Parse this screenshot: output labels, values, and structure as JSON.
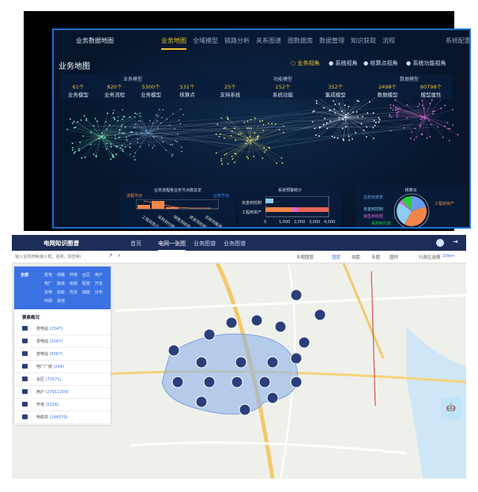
{
  "top_app": {
    "logo_text": "业务数据地图",
    "nav": [
      "业务地图",
      "全域模型",
      "链路分析",
      "关系图谱",
      "图数据库",
      "数据管理",
      "知识获取",
      "流程",
      "系统配置"
    ],
    "active_nav": 0,
    "page_title": "业务地图",
    "views": [
      "业务视角",
      "系统视角",
      "核算点视角",
      "系统功能视角"
    ],
    "active_view": 0,
    "groups": [
      {
        "title": "业务模型",
        "stats": [
          {
            "value": "61个",
            "label": "业务模型"
          },
          {
            "value": "820个",
            "label": "业务流程"
          },
          {
            "value": "5300个",
            "label": "业务模型"
          },
          {
            "value": "531个",
            "label": "核算点"
          }
        ]
      },
      {
        "title": "功能模型",
        "stats": [
          {
            "value": "25个",
            "label": "支持系统"
          },
          {
            "value": "152个",
            "label": "系统功能"
          },
          {
            "value": "352个",
            "label": "集成模型"
          }
        ]
      },
      {
        "title": "数据模型",
        "stats": [
          {
            "value": "2498个",
            "label": "数据模型"
          },
          {
            "value": "60798个",
            "label": "模型属性"
          }
        ]
      }
    ],
    "panel1": {
      "title": "业务流程各业务节点数总览",
      "legend": [
        "流程节点",
        "业务节点"
      ],
      "categories": [
        "工程到资产",
        "采购到付款",
        "销售到收款",
        "资金到控制",
        "总账到报表"
      ]
    },
    "panel2": {
      "title": "系统预警统计",
      "categories": [
        "资金到控制",
        "工程到资产"
      ],
      "ticks": [
        "0",
        "1,000",
        "2,000",
        "3,000",
        "4,000"
      ]
    },
    "panel3": {
      "title": "核算点",
      "labels": [
        "总账到报表",
        "工程到资产",
        "资金到控制",
        "销售到收款",
        "采购到付款"
      ],
      "colors": [
        "#6b9be8",
        "#f4854a",
        "#8ecbf5",
        "#d966d9",
        "#2ecc40"
      ]
    }
  },
  "bottom_app": {
    "title": "电网知识图谱",
    "nav": [
      "首页",
      "电网一张图",
      "业务图谱",
      "业务图谱"
    ],
    "active_nav": 1,
    "search_placeholder": "输入全局搜索(输入框，名称，拼音等)",
    "tools": [
      "专题图层",
      "图层",
      "测距",
      "专题",
      "图例",
      "行政区选择",
      "20km"
    ],
    "categories": [
      "全部",
      "变电",
      "线路",
      "杆塔",
      "台区",
      "用户",
      "电厂",
      "换流",
      "电缆",
      "配变",
      "开关",
      "充电",
      "站房",
      "光伏",
      "储能",
      "分布",
      "环网",
      "其他"
    ],
    "overview_title": "要素概况",
    "items": [
      {
        "label": "变电站",
        "count": "(1547)"
      },
      {
        "label": "变电站",
        "count": "(1547)"
      },
      {
        "label": "变电站",
        "count": "(5567)"
      },
      {
        "label": "电厂厂房",
        "count": "(249)"
      },
      {
        "label": "台区",
        "count": "(71571)"
      },
      {
        "label": "用户",
        "count": "(27911209)"
      },
      {
        "label": "杆塔",
        "count": "(5226)"
      },
      {
        "label": "电缆井",
        "count": "(144570)"
      }
    ]
  }
}
